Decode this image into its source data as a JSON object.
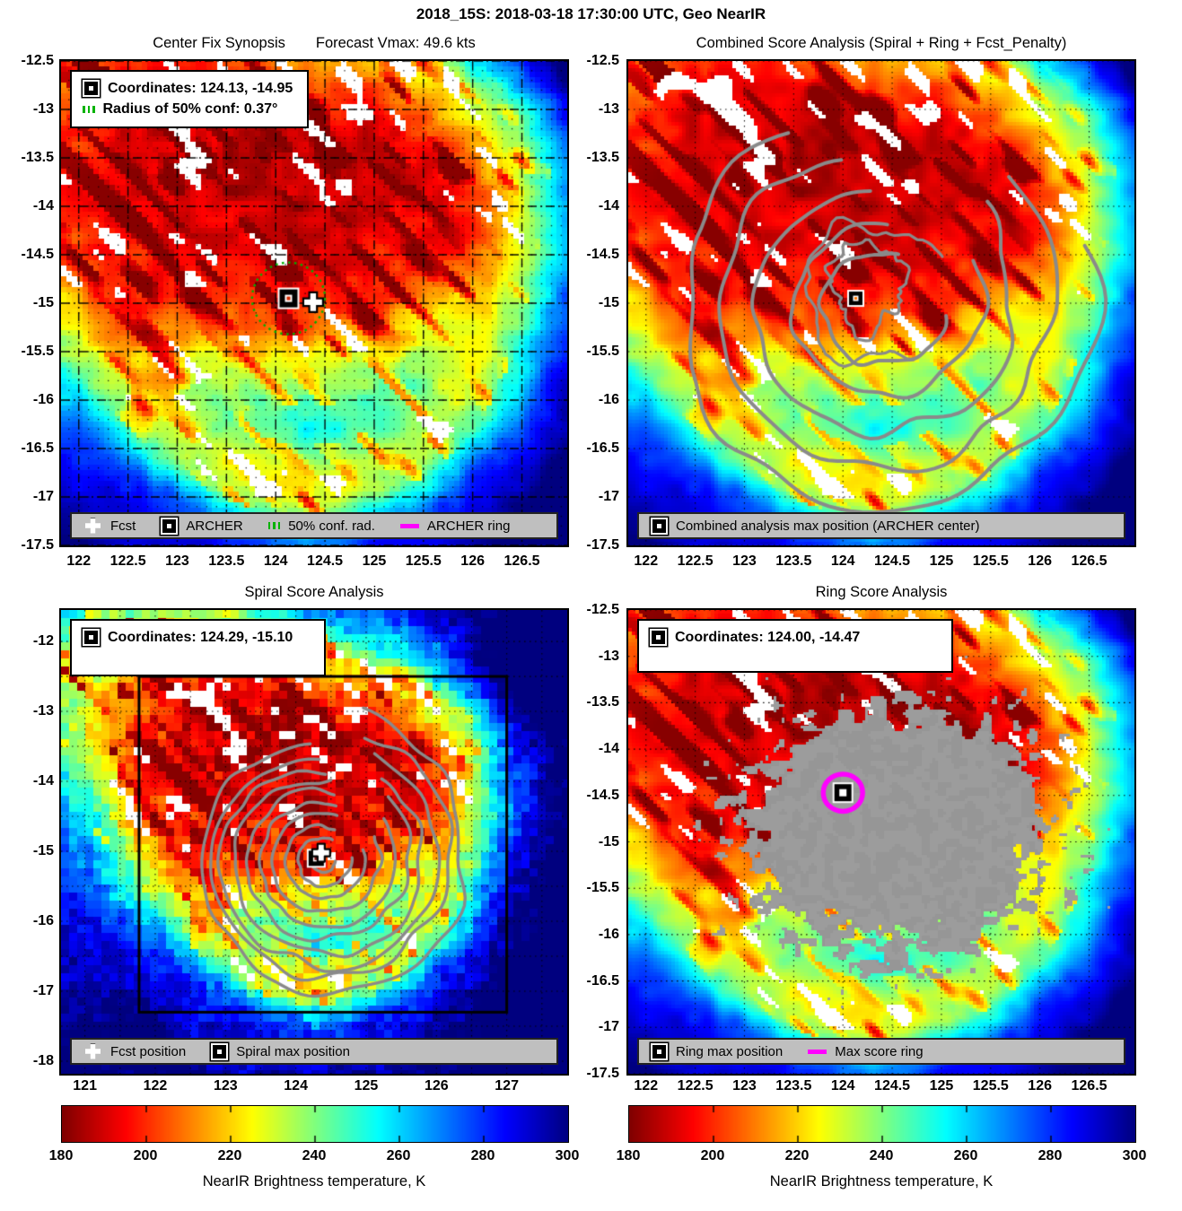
{
  "figure_title": "2018_15S: 2018-03-18 17:30:00 UTC, Geo NearIR",
  "storm": {
    "id": "2018_15S",
    "datetime_utc": "2018-03-18 17:30:00",
    "sensor": "Geo NearIR",
    "forecast_vmax_kts": 49.6
  },
  "panels": {
    "center_fix": {
      "title": "Center Fix Synopsis",
      "subtitle": "Forecast Vmax: 49.6 kts"
    },
    "combined": {
      "title": "Combined Score Analysis (Spiral + Ring + Fcst_Penalty)"
    },
    "spiral": {
      "title": "Spiral Score Analysis"
    },
    "ring": {
      "title": "Ring Score Analysis"
    }
  },
  "legends": {
    "center_fix_box": [
      {
        "marker": "square",
        "label": "Coordinates: 124.13, -14.95"
      },
      {
        "marker": "green-dots",
        "label": "Radius of 50% conf: 0.37°"
      }
    ],
    "center_fix_bar": [
      {
        "marker": "cross",
        "label": "Fcst"
      },
      {
        "marker": "square",
        "label": "ARCHER"
      },
      {
        "marker": "green-dots",
        "label": "50% conf. rad."
      },
      {
        "marker": "magenta-line",
        "label": "ARCHER ring"
      }
    ],
    "combined_bar": [
      {
        "marker": "square",
        "label": "Combined analysis max position (ARCHER center)"
      }
    ],
    "spiral_box": [
      {
        "marker": "square",
        "label": "Coordinates: 124.29, -15.10"
      }
    ],
    "spiral_bar": [
      {
        "marker": "cross",
        "label": "Fcst position"
      },
      {
        "marker": "square",
        "label": "Spiral max position"
      }
    ],
    "ring_box": [
      {
        "marker": "square",
        "label": "Coordinates: 124.00, -14.47"
      }
    ],
    "ring_bar": [
      {
        "marker": "square",
        "label": "Ring max position"
      },
      {
        "marker": "magenta-line",
        "label": "Max score ring"
      }
    ]
  },
  "colorbar": {
    "label": "NearIR Brightness temperature, K",
    "range": [
      180,
      300
    ],
    "ticks": [
      180,
      200,
      220,
      240,
      260,
      280,
      300
    ]
  },
  "colors": {
    "legend_bar_bg": "#bfbfbf",
    "contour_gray": "#8a8a8a",
    "speckle_gray": "#969696",
    "magenta": "#ff00ff",
    "conf_green": "#00b200",
    "box_black": "#000000"
  },
  "chart_data": [
    {
      "id": "center_fix",
      "type": "heatmap",
      "title": "Center Fix Synopsis",
      "subtitle": "Forecast Vmax: 49.6 kts",
      "xlim": [
        121.82,
        126.96
      ],
      "ylim": [
        -17.5,
        -12.5
      ],
      "x_ticks": [
        122,
        122.5,
        123,
        123.5,
        124,
        124.5,
        125,
        125.5,
        126,
        126.5
      ],
      "y_ticks": [
        -12.5,
        -13,
        -13.5,
        -14,
        -14.5,
        -15,
        -15.5,
        -16,
        -16.5,
        -17,
        -17.5
      ],
      "archer_fix": {
        "lon": 124.13,
        "lat": -14.95
      },
      "fcst_position": {
        "lon": 124.38,
        "lat": -14.99
      },
      "conf_radius_50pct_deg": 0.37,
      "colorbar_label": "NearIR Brightness temperature, K",
      "colorbar_range": [
        180,
        300
      ]
    },
    {
      "id": "combined",
      "type": "heatmap",
      "title": "Combined Score Analysis (Spiral + Ring + Fcst_Penalty)",
      "xlim": [
        121.82,
        126.96
      ],
      "ylim": [
        -17.5,
        -12.5
      ],
      "x_ticks": [
        122,
        122.5,
        123,
        123.5,
        124,
        124.5,
        125,
        125.5,
        126,
        126.5
      ],
      "y_ticks": [
        -12.5,
        -13,
        -13.5,
        -14,
        -14.5,
        -15,
        -15.5,
        -16,
        -16.5,
        -17,
        -17.5
      ],
      "max_position": {
        "lon": 124.13,
        "lat": -14.95
      }
    },
    {
      "id": "spiral",
      "type": "heatmap",
      "title": "Spiral Score Analysis",
      "xlim": [
        120.66,
        127.86
      ],
      "ylim": [
        -18.18,
        -11.55
      ],
      "x_ticks": [
        121,
        122,
        123,
        124,
        125,
        126,
        127
      ],
      "y_ticks": [
        -12,
        -13,
        -14,
        -15,
        -16,
        -17,
        -18
      ],
      "max_position": {
        "lon": 124.29,
        "lat": -15.1
      },
      "fcst_position": {
        "lon": 124.36,
        "lat": -15.02
      },
      "search_box": {
        "lon_min": 121.77,
        "lon_max": 127.0,
        "lat_min": -17.3,
        "lat_max": -12.5
      }
    },
    {
      "id": "ring",
      "type": "heatmap",
      "title": "Ring Score Analysis",
      "xlim": [
        121.82,
        126.96
      ],
      "ylim": [
        -17.5,
        -12.5
      ],
      "x_ticks": [
        122,
        122.5,
        123,
        123.5,
        124,
        124.5,
        125,
        125.5,
        126,
        126.5
      ],
      "y_ticks": [
        -12.5,
        -13,
        -13.5,
        -14,
        -14.5,
        -15,
        -15.5,
        -16,
        -16.5,
        -17,
        -17.5
      ],
      "max_position": {
        "lon": 124.0,
        "lat": -14.47
      },
      "max_score_ring_radius_deg": 0.2
    }
  ]
}
